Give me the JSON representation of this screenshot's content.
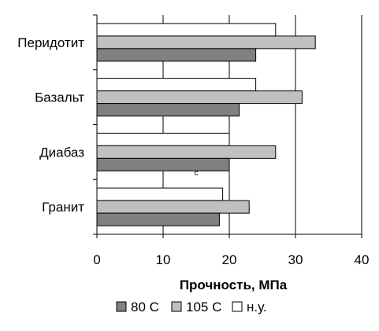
{
  "chart_data": {
    "type": "bar",
    "orientation": "horizontal",
    "categories": [
      "Перидотит",
      "Базальт",
      "Диабаз",
      "Гранит"
    ],
    "series": [
      {
        "name": "н.у.",
        "color": "#ffffff",
        "values": [
          27,
          24,
          20,
          19
        ]
      },
      {
        "name": "105 С",
        "color": "#c0c0c0",
        "values": [
          33,
          31,
          27,
          23
        ]
      },
      {
        "name": "80 С",
        "color": "#808080",
        "values": [
          24,
          21.5,
          20,
          18.5
        ]
      }
    ],
    "legend_order": [
      "80 С",
      "105 С",
      "н.у."
    ],
    "xlabel": "Прочность, МПа",
    "xlim": [
      0,
      40
    ],
    "xticks": [
      0,
      10,
      20,
      30,
      40
    ],
    "grid": "vertical",
    "legend_position": "bottom",
    "annotation": "c"
  }
}
